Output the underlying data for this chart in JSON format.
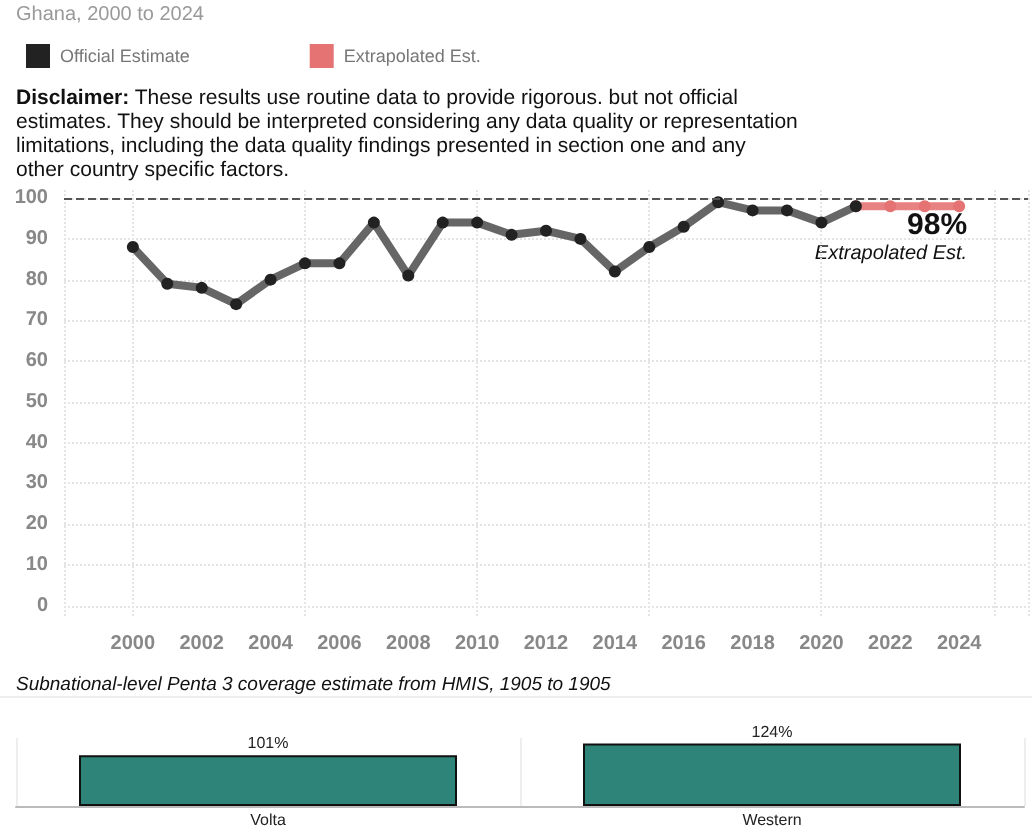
{
  "chart_data": [
    {
      "type": "line",
      "title": "Ghana, 2000 to 2024",
      "annotations": [
        "Disclaimer: These results use routine data to provide rigorous. but not official estimates. They should be interpreted considering any data quality or representation limitations, including the data quality findings presented in section one and any other country specific factors.",
        {
          "text": "98%",
          "x": 2024,
          "y": 98
        },
        {
          "text": "Extrapolated Est.",
          "x": 2024,
          "y": 98
        }
      ],
      "series": [
        {
          "name": "Official Estimate",
          "color": "#555555",
          "x": [
            2000,
            2001,
            2002,
            2003,
            2004,
            2005,
            2006,
            2007,
            2008,
            2009,
            2010,
            2011,
            2012,
            2013,
            2014,
            2015,
            2016,
            2017,
            2018,
            2019,
            2020,
            2021
          ],
          "values": [
            88,
            79,
            78,
            74,
            80,
            84,
            84,
            94,
            81,
            94,
            94,
            91,
            92,
            90,
            82,
            88,
            93,
            99,
            97,
            97,
            94,
            98
          ]
        },
        {
          "name": "Extrapolated Est.",
          "color": "#e57373",
          "x": [
            2021,
            2022,
            2023,
            2024
          ],
          "values": [
            98,
            98,
            98,
            98
          ]
        }
      ],
      "xlim": [
        1998,
        2026
      ],
      "xticks": [
        2000,
        2002,
        2004,
        2006,
        2008,
        2010,
        2012,
        2014,
        2016,
        2018,
        2020,
        2022,
        2024
      ],
      "ylim": [
        -3,
        102
      ],
      "yticks": [
        0,
        10,
        20,
        30,
        40,
        50,
        60,
        70,
        80,
        90,
        100
      ],
      "ref_lines": [
        {
          "axis": "y",
          "value": 100,
          "color": "#555555",
          "line_style": "dashed"
        }
      ],
      "grid": true,
      "legend": "top left",
      "marker": "circle",
      "line_style": "solid"
    },
    {
      "type": "bar",
      "title": "Subnational-level Penta 3 coverage estimate from HMIS, 1905 to 1905",
      "categories": [
        "Volta",
        "Western"
      ],
      "values": [
        101,
        124
      ],
      "color": "#2e8478",
      "value_labels": [
        "101%",
        "124%"
      ],
      "ylim": [
        0,
        135
      ],
      "tick_labels": "x",
      "grid": "x"
    }
  ]
}
